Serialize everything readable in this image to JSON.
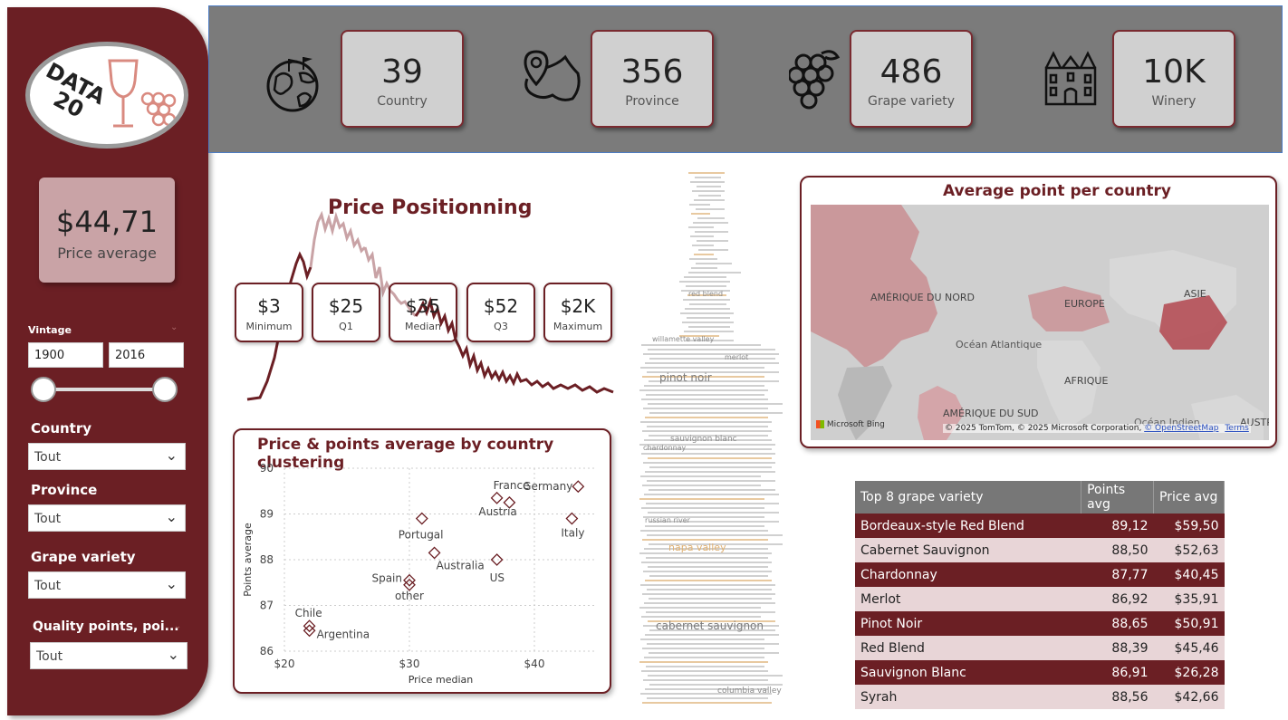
{
  "sidebar": {
    "logo_text_line1": "DATA",
    "logo_text_line2": "20",
    "price_avg_value": "$44,71",
    "price_avg_label": "Price average",
    "vintage_label": "Vintage",
    "vintage_from": "1900",
    "vintage_to": "2016",
    "filters": [
      {
        "label": "Country",
        "value": "Tout"
      },
      {
        "label": "Province",
        "value": "Tout"
      },
      {
        "label": "Grape variety",
        "value": "Tout"
      },
      {
        "label": "Quality points, poi...",
        "value": "Tout"
      }
    ]
  },
  "kpis": [
    {
      "value": "39",
      "label": "Country",
      "icon": "globe-icon"
    },
    {
      "value": "356",
      "label": "Province",
      "icon": "map-pin-icon"
    },
    {
      "value": "486",
      "label": "Grape variety",
      "icon": "grapes-icon"
    },
    {
      "value": "10K",
      "label": "Winery",
      "icon": "chateau-icon"
    }
  ],
  "price_positioning": {
    "title": "Price Positionning",
    "quartiles": [
      {
        "value": "$3",
        "label": "Minimum"
      },
      {
        "value": "$25",
        "label": "Q1"
      },
      {
        "value": "$35",
        "label": "Median"
      },
      {
        "value": "$52",
        "label": "Q3"
      },
      {
        "value": "$2K",
        "label": "Maximum"
      }
    ]
  },
  "chart_data": {
    "type": "scatter",
    "title": "Price & points average by country clustering",
    "xlabel": "Price median",
    "ylabel": "Points average",
    "xlim": [
      20,
      45
    ],
    "ylim": [
      86,
      90
    ],
    "xticks": [
      "$20",
      "$30",
      "$40"
    ],
    "yticks": [
      "86",
      "87",
      "88",
      "89",
      "90"
    ],
    "points": [
      {
        "label": "France",
        "x": 37,
        "y": 89.35
      },
      {
        "label": "Germany",
        "x": 43.5,
        "y": 89.6
      },
      {
        "label": "Austria",
        "x": 38,
        "y": 89.25
      },
      {
        "label": "Italy",
        "x": 43,
        "y": 88.9
      },
      {
        "label": "Portugal",
        "x": 31,
        "y": 88.9
      },
      {
        "label": "Australia",
        "x": 32,
        "y": 88.15
      },
      {
        "label": "US",
        "x": 37,
        "y": 88.0
      },
      {
        "label": "Spain",
        "x": 30,
        "y": 87.55
      },
      {
        "label": "other",
        "x": 30,
        "y": 87.45
      },
      {
        "label": "Chile",
        "x": 22,
        "y": 86.55
      },
      {
        "label": "Argentina",
        "x": 22,
        "y": 86.45
      }
    ]
  },
  "map": {
    "title": "Average point per country",
    "labels": [
      "AMÉRIQUE DU NORD",
      "EUROPE",
      "ASIE",
      "Océan Atlantique",
      "AFRIQUE",
      "AMÉRIQUE DU SUD",
      "Océan Indien",
      "AUSTRA"
    ],
    "provider": "Microsoft Bing",
    "attribution": "© 2025 TomTom, © 2025 Microsoft Corporation,",
    "osm_link": "© OpenStreetMap",
    "terms_link": "Terms"
  },
  "table": {
    "headers": [
      "Top 8 grape variety",
      "Points avg",
      "Price avg"
    ],
    "rows": [
      [
        "Bordeaux-style Red Blend",
        "89,12",
        "$59,50"
      ],
      [
        "Cabernet Sauvignon",
        "88,50",
        "$52,63"
      ],
      [
        "Chardonnay",
        "87,77",
        "$40,45"
      ],
      [
        "Merlot",
        "86,92",
        "$35,91"
      ],
      [
        "Pinot Noir",
        "88,65",
        "$50,91"
      ],
      [
        "Red Blend",
        "88,39",
        "$45,46"
      ],
      [
        "Sauvignon Blanc",
        "86,91",
        "$26,28"
      ],
      [
        "Syrah",
        "88,56",
        "$42,66"
      ]
    ]
  },
  "wordcloud": {
    "words": [
      "pinot noir",
      "napa valley",
      "cabernet sauvignon",
      "russian river",
      "columbia valley",
      "willamette valley",
      "sauvignon blanc",
      "red blend",
      "chardonnay",
      "merlot"
    ]
  },
  "colors": {
    "accent": "#6b1f24",
    "light": "#e8d5d7",
    "band": "#7b7b7b"
  }
}
